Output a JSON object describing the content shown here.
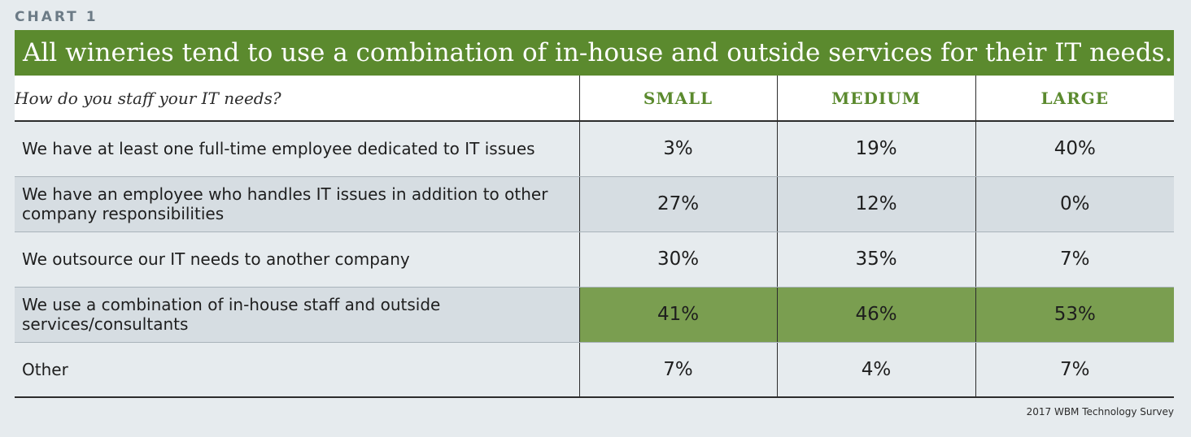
{
  "chart_label": "CHART 1",
  "title": "All wineries tend to use a combination of in-house and outside services for their IT needs.",
  "source": "2017 WBM Technology Survey",
  "colors": {
    "accent": "#5b8a2e",
    "highlight": "#7a9e50",
    "band": "#d6dde2",
    "background": "#e6ebee"
  },
  "chart_data": {
    "type": "table",
    "title": "All wineries tend to use a combination of in-house and outside services for their IT needs.",
    "row_header": "How do you staff your IT needs?",
    "columns": [
      "SMALL",
      "MEDIUM",
      "LARGE"
    ],
    "rows": [
      {
        "label": "We have at least one full-time employee dedicated to IT issues",
        "values": [
          "3%",
          "19%",
          "40%"
        ],
        "highlighted": false
      },
      {
        "label": "We have an employee who handles IT issues in addition to other company responsibilities",
        "values": [
          "27%",
          "12%",
          "0%"
        ],
        "highlighted": false
      },
      {
        "label": "We outsource our IT needs to another company",
        "values": [
          "30%",
          "35%",
          "7%"
        ],
        "highlighted": false
      },
      {
        "label": "We use a combination of in-house staff and outside services/consultants",
        "values": [
          "41%",
          "46%",
          "53%"
        ],
        "highlighted": true
      },
      {
        "label": "Other",
        "values": [
          "7%",
          "4%",
          "7%"
        ],
        "highlighted": false
      }
    ]
  }
}
